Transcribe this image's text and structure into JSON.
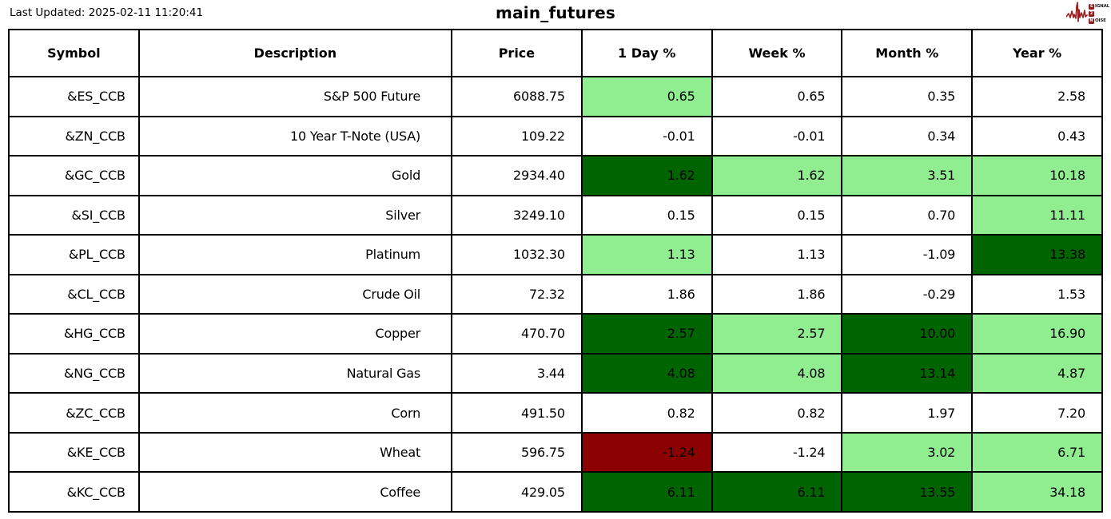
{
  "meta": {
    "last_updated": "Last Updated: 2025-02-11 11:20:41",
    "title": "main_futures"
  },
  "brand": {
    "name": "signal-2-noise",
    "line1_badge": "S",
    "line1_rest": "IGNAL",
    "line2_badge": "2",
    "line2_rest": "",
    "line3_badge": "N",
    "line3_rest": "OISE"
  },
  "colors": {
    "white": "#ffffff",
    "lightgreen": "#90ee90",
    "darkgreen": "#006400",
    "darkred": "#8b0000",
    "border": "#000000",
    "logo_red": "#9b1f1f"
  },
  "chart_data": {
    "type": "table",
    "title": "main_futures",
    "columns": [
      "Symbol",
      "Description",
      "Price",
      "1 Day %",
      "Week %",
      "Month %",
      "Year %"
    ],
    "rows": [
      {
        "symbol": "&ES_CCB",
        "description": "S&P 500 Future",
        "price": "6088.75",
        "changes": [
          {
            "value": "0.65",
            "bg": "lightgreen"
          },
          {
            "value": "0.65",
            "bg": "white"
          },
          {
            "value": "0.35",
            "bg": "white"
          },
          {
            "value": "2.58",
            "bg": "white"
          }
        ]
      },
      {
        "symbol": "&ZN_CCB",
        "description": "10 Year T-Note (USA)",
        "price": "109.22",
        "changes": [
          {
            "value": "-0.01",
            "bg": "white"
          },
          {
            "value": "-0.01",
            "bg": "white"
          },
          {
            "value": "0.34",
            "bg": "white"
          },
          {
            "value": "0.43",
            "bg": "white"
          }
        ]
      },
      {
        "symbol": "&GC_CCB",
        "description": "Gold",
        "price": "2934.40",
        "changes": [
          {
            "value": "1.62",
            "bg": "darkgreen"
          },
          {
            "value": "1.62",
            "bg": "lightgreen"
          },
          {
            "value": "3.51",
            "bg": "lightgreen"
          },
          {
            "value": "10.18",
            "bg": "lightgreen"
          }
        ]
      },
      {
        "symbol": "&SI_CCB",
        "description": "Silver",
        "price": "3249.10",
        "changes": [
          {
            "value": "0.15",
            "bg": "white"
          },
          {
            "value": "0.15",
            "bg": "white"
          },
          {
            "value": "0.70",
            "bg": "white"
          },
          {
            "value": "11.11",
            "bg": "lightgreen"
          }
        ]
      },
      {
        "symbol": "&PL_CCB",
        "description": "Platinum",
        "price": "1032.30",
        "changes": [
          {
            "value": "1.13",
            "bg": "lightgreen"
          },
          {
            "value": "1.13",
            "bg": "white"
          },
          {
            "value": "-1.09",
            "bg": "white"
          },
          {
            "value": "13.38",
            "bg": "darkgreen"
          }
        ]
      },
      {
        "symbol": "&CL_CCB",
        "description": "Crude Oil",
        "price": "72.32",
        "changes": [
          {
            "value": "1.86",
            "bg": "white"
          },
          {
            "value": "1.86",
            "bg": "white"
          },
          {
            "value": "-0.29",
            "bg": "white"
          },
          {
            "value": "1.53",
            "bg": "white"
          }
        ]
      },
      {
        "symbol": "&HG_CCB",
        "description": "Copper",
        "price": "470.70",
        "changes": [
          {
            "value": "2.57",
            "bg": "darkgreen"
          },
          {
            "value": "2.57",
            "bg": "lightgreen"
          },
          {
            "value": "10.00",
            "bg": "darkgreen"
          },
          {
            "value": "16.90",
            "bg": "lightgreen"
          }
        ]
      },
      {
        "symbol": "&NG_CCB",
        "description": "Natural Gas",
        "price": "3.44",
        "changes": [
          {
            "value": "4.08",
            "bg": "darkgreen"
          },
          {
            "value": "4.08",
            "bg": "lightgreen"
          },
          {
            "value": "13.14",
            "bg": "darkgreen"
          },
          {
            "value": "4.87",
            "bg": "lightgreen"
          }
        ]
      },
      {
        "symbol": "&ZC_CCB",
        "description": "Corn",
        "price": "491.50",
        "changes": [
          {
            "value": "0.82",
            "bg": "white"
          },
          {
            "value": "0.82",
            "bg": "white"
          },
          {
            "value": "1.97",
            "bg": "white"
          },
          {
            "value": "7.20",
            "bg": "white"
          }
        ]
      },
      {
        "symbol": "&KE_CCB",
        "description": "Wheat",
        "price": "596.75",
        "changes": [
          {
            "value": "-1.24",
            "bg": "darkred"
          },
          {
            "value": "-1.24",
            "bg": "white"
          },
          {
            "value": "3.02",
            "bg": "lightgreen"
          },
          {
            "value": "6.71",
            "bg": "lightgreen"
          }
        ]
      },
      {
        "symbol": "&KC_CCB",
        "description": "Coffee",
        "price": "429.05",
        "changes": [
          {
            "value": "6.11",
            "bg": "darkgreen"
          },
          {
            "value": "6.11",
            "bg": "darkgreen"
          },
          {
            "value": "13.55",
            "bg": "darkgreen"
          },
          {
            "value": "34.18",
            "bg": "lightgreen"
          }
        ]
      }
    ]
  }
}
